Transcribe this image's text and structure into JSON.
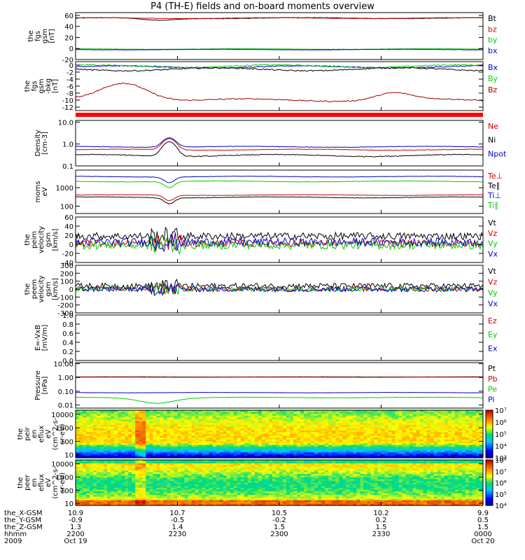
{
  "title": "P4 (TH-E) fields and on-board moments overview",
  "chart_data": [
    {
      "type": "line",
      "ylabel": [
        "the",
        "fgs",
        "gsm",
        "[nT]"
      ],
      "ylim": [
        -20,
        65
      ],
      "yticks": [
        {
          "v": -20,
          "t": "-20"
        },
        {
          "v": 0,
          "t": "0"
        },
        {
          "v": 20,
          "t": "20"
        },
        {
          "v": 40,
          "t": "40"
        },
        {
          "v": 60,
          "t": "60"
        }
      ],
      "series": [
        {
          "name": "Bt",
          "color": "#000000",
          "base": 55,
          "wig": 1.5,
          "dips": [
            [
              0.2,
              4,
              0.06
            ]
          ]
        },
        {
          "name": "bz",
          "color": "#cc0000",
          "base": 55,
          "wig": 1.2,
          "dips": []
        },
        {
          "name": "by",
          "color": "#00cc00",
          "base": -1,
          "wig": 0.8,
          "dips": []
        },
        {
          "name": "bx",
          "color": "#0000cc",
          "base": -2,
          "wig": 0.8,
          "dips": []
        }
      ]
    },
    {
      "type": "line",
      "ylabel": [
        "the",
        "fgs",
        "gsm",
        "-bkg",
        "[nT]"
      ],
      "ylim": [
        -13,
        1
      ],
      "yticks": [
        {
          "v": -12,
          "t": "-12"
        },
        {
          "v": -10,
          "t": "-10"
        },
        {
          "v": -8,
          "t": "-8"
        },
        {
          "v": -6,
          "t": "-6"
        },
        {
          "v": -4,
          "t": "-4"
        },
        {
          "v": -2,
          "t": "-2"
        },
        {
          "v": 0,
          "t": "0"
        }
      ],
      "series": [
        {
          "name": "Bx",
          "color": "#0000cc",
          "base": -0.5,
          "wig": 0.5,
          "dips": []
        },
        {
          "name": "By",
          "color": "#00cc00",
          "base": -0.3,
          "wig": 0.6,
          "dips": []
        },
        {
          "name": "Bz",
          "color": "#a00000",
          "base": -10,
          "wig": 0.6,
          "bumps": [
            [
              0.12,
              5,
              0.08
            ],
            [
              0.78,
              2,
              0.06
            ]
          ]
        },
        {
          "name": "",
          "color": "#000000",
          "base": -1.2,
          "wig": 0.7,
          "dips": []
        }
      ],
      "flagbar": "#ff0000"
    },
    {
      "type": "line",
      "log": true,
      "ylabel": [
        "Density",
        "[cm-3]"
      ],
      "ylim": [
        0.1,
        12
      ],
      "yticks": [
        {
          "v": 0.1,
          "t": "0.1"
        },
        {
          "v": 1.0,
          "t": "1.0"
        },
        {
          "v": 10.0,
          "t": "10.0"
        }
      ],
      "series": [
        {
          "name": "Ne",
          "color": "#cc0000",
          "base": 0.55,
          "wig": 0.05,
          "bumps": [
            [
              0.23,
              1.2,
              0.02
            ]
          ]
        },
        {
          "name": "Ni",
          "color": "#000000",
          "base": 0.3,
          "wig": 0.05,
          "bumps": [
            [
              0.23,
              1.0,
              0.02
            ]
          ]
        },
        {
          "name": "Npot",
          "color": "#0000cc",
          "base": 0.75,
          "wig": 0.06,
          "bumps": [
            [
              0.23,
              1.2,
              0.02
            ]
          ]
        }
      ]
    },
    {
      "type": "line",
      "log": true,
      "ylabel": [
        "moms",
        "eV"
      ],
      "ylim": [
        40,
        9000
      ],
      "yticks": [
        {
          "v": 100,
          "t": "100"
        },
        {
          "v": 1000,
          "t": "1000"
        }
      ],
      "series": [
        {
          "name": "Te⊥",
          "color": "#cc0000",
          "base": 400,
          "wig": 30,
          "dips": [
            [
              0.23,
              200,
              0.02
            ]
          ]
        },
        {
          "name": "Te∥",
          "color": "#000000",
          "base": 300,
          "wig": 30,
          "dips": [
            [
              0.23,
              150,
              0.02
            ]
          ]
        },
        {
          "name": "Ti⊥",
          "color": "#0000cc",
          "base": 4000,
          "wig": 300,
          "dips": [
            [
              0.23,
              2000,
              0.02
            ]
          ]
        },
        {
          "name": "Ti∥",
          "color": "#00cc00",
          "base": 2200,
          "wig": 200,
          "dips": [
            [
              0.23,
              1200,
              0.02
            ]
          ]
        }
      ]
    },
    {
      "type": "line",
      "noisy": true,
      "ylabel": [
        "the",
        "peim",
        "velocity",
        "gsm",
        "[km/s]"
      ],
      "ylim": [
        -40,
        60
      ],
      "yticks": [
        {
          "v": -40,
          "t": "-40"
        },
        {
          "v": -20,
          "t": "-20"
        },
        {
          "v": 0,
          "t": "0"
        },
        {
          "v": 20,
          "t": "20"
        },
        {
          "v": 40,
          "t": "40"
        },
        {
          "v": 60,
          "t": "60"
        }
      ],
      "series": [
        {
          "name": "Vt",
          "color": "#000000",
          "base": 18,
          "wig": 8
        },
        {
          "name": "Vz",
          "color": "#cc0000",
          "base": 2,
          "wig": 8
        },
        {
          "name": "Vy",
          "color": "#00cc00",
          "base": -2,
          "wig": 9
        },
        {
          "name": "Vx",
          "color": "#0000cc",
          "base": 5,
          "wig": 9
        }
      ]
    },
    {
      "type": "line",
      "noisy": true,
      "ylabel": [
        "the",
        "peem",
        "velocity",
        "gsm",
        "[km/s]"
      ],
      "ylim": [
        -300,
        300
      ],
      "yticks": [
        {
          "v": -300,
          "t": "-300"
        },
        {
          "v": -200,
          "t": "-200"
        },
        {
          "v": -100,
          "t": "-100"
        },
        {
          "v": 0,
          "t": "0"
        },
        {
          "v": 100,
          "t": "100"
        },
        {
          "v": 200,
          "t": "200"
        },
        {
          "v": 300,
          "t": "300"
        }
      ],
      "series": [
        {
          "name": "Vt",
          "color": "#000000",
          "base": 40,
          "wig": 35
        },
        {
          "name": "Vz",
          "color": "#cc0000",
          "base": 0,
          "wig": 30
        },
        {
          "name": "Vy",
          "color": "#00cc00",
          "base": 0,
          "wig": 30
        },
        {
          "name": "Vx",
          "color": "#0000cc",
          "base": 0,
          "wig": 35
        }
      ]
    },
    {
      "type": "line",
      "ylabel": [
        "E=-VxB",
        "[mV/m]"
      ],
      "ylim": [
        0,
        1
      ],
      "yticks": [
        {
          "v": 0,
          "t": "0.0"
        },
        {
          "v": 0.2,
          "t": "0.2"
        },
        {
          "v": 0.4,
          "t": "0.4"
        },
        {
          "v": 0.6,
          "t": "0.6"
        },
        {
          "v": 0.8,
          "t": "0.8"
        },
        {
          "v": 1.0,
          "t": "1.0"
        }
      ],
      "series": [
        {
          "name": "Ez",
          "color": "#cc0000",
          "empty": true
        },
        {
          "name": "Ey",
          "color": "#00cc00",
          "empty": true
        },
        {
          "name": "Ex",
          "color": "#0000cc",
          "empty": true
        }
      ]
    },
    {
      "type": "line",
      "log": true,
      "ylabel": [
        "Pressure",
        "[nPa]"
      ],
      "ylim": [
        0.006,
        12
      ],
      "yticks": [
        {
          "v": 0.01,
          "t": "0.01"
        },
        {
          "v": 0.1,
          "t": "0.10"
        },
        {
          "v": 1,
          "t": "1.00"
        },
        {
          "v": 10,
          "t": "10.00"
        }
      ],
      "series": [
        {
          "name": "Pt",
          "color": "#000000",
          "base": 1.1,
          "wig": 0.02
        },
        {
          "name": "Pb",
          "color": "#cc0000",
          "base": 1.05,
          "wig": 0.02
        },
        {
          "name": "Pe",
          "color": "#00cc00",
          "base": 0.035,
          "wig": 0.003,
          "dips": [
            [
              0.2,
              0.02,
              0.07
            ]
          ]
        },
        {
          "name": "Pi",
          "color": "#0000cc",
          "base": 0.08,
          "wig": 0.004
        }
      ]
    },
    {
      "type": "heatmap",
      "log": true,
      "ylabel": [
        "the",
        "peir",
        "en",
        "eflux",
        "eV",
        "(cm^2-s-",
        "sr-eV)"
      ],
      "ylim": [
        6,
        20000
      ],
      "yticks": [
        {
          "v": 10,
          "t": "10"
        },
        {
          "v": 100,
          "t": "100"
        },
        {
          "v": 1000,
          "t": "1000"
        },
        {
          "v": 10000,
          "t": "10000"
        }
      ],
      "colorbar": {
        "min": 3,
        "max": 7,
        "labels": [
          "10³",
          "10⁴",
          "10⁵",
          "10⁶",
          "10⁷"
        ]
      }
    },
    {
      "type": "heatmap",
      "log": true,
      "ylabel": [
        "the",
        "peer",
        "en",
        "eflux",
        "eV",
        "(cm^2-s-",
        "sr-eV)"
      ],
      "ylim": [
        7,
        20000
      ],
      "yticks": [
        {
          "v": 10,
          "t": "10"
        },
        {
          "v": 100,
          "t": "100"
        },
        {
          "v": 1000,
          "t": "1000"
        },
        {
          "v": 10000,
          "t": "10000"
        }
      ],
      "colorbar": {
        "min": 4,
        "max": 8,
        "labels": [
          "10⁴",
          "10⁵",
          "10⁶",
          "10⁷",
          "10⁸"
        ]
      }
    }
  ],
  "xaxis": {
    "rows": [
      {
        "label": "the_X-GSM",
        "values": [
          "10.9",
          "10.7",
          "10.5",
          "10.2",
          "9.9"
        ]
      },
      {
        "label": "the_Y-GSM",
        "values": [
          "-0.9",
          "-0.5",
          "-0.2",
          "0.2",
          "0.5"
        ]
      },
      {
        "label": "the_Z-GSM",
        "values": [
          "1.3",
          "1.4",
          "1.5",
          "1.5",
          "1.5"
        ]
      },
      {
        "label": "hhmm",
        "values": [
          "2200",
          "2230",
          "2300",
          "2330",
          "0000"
        ]
      },
      {
        "label": "2009",
        "values": [
          "Oct 19",
          "",
          "",
          "",
          "Oct 20"
        ]
      }
    ]
  }
}
